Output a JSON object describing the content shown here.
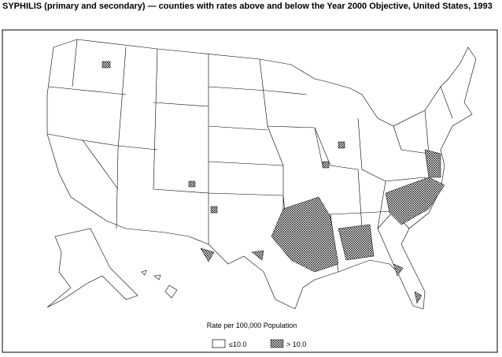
{
  "title": "SYPHILIS (primary and secondary) — counties with rates above and below the Year 2000 Objective, United States, 1993",
  "legend": {
    "title": "Rate per 100,000 Population",
    "items": [
      {
        "label": "≤10.0"
      },
      {
        "label": "> 10.0"
      }
    ]
  }
}
